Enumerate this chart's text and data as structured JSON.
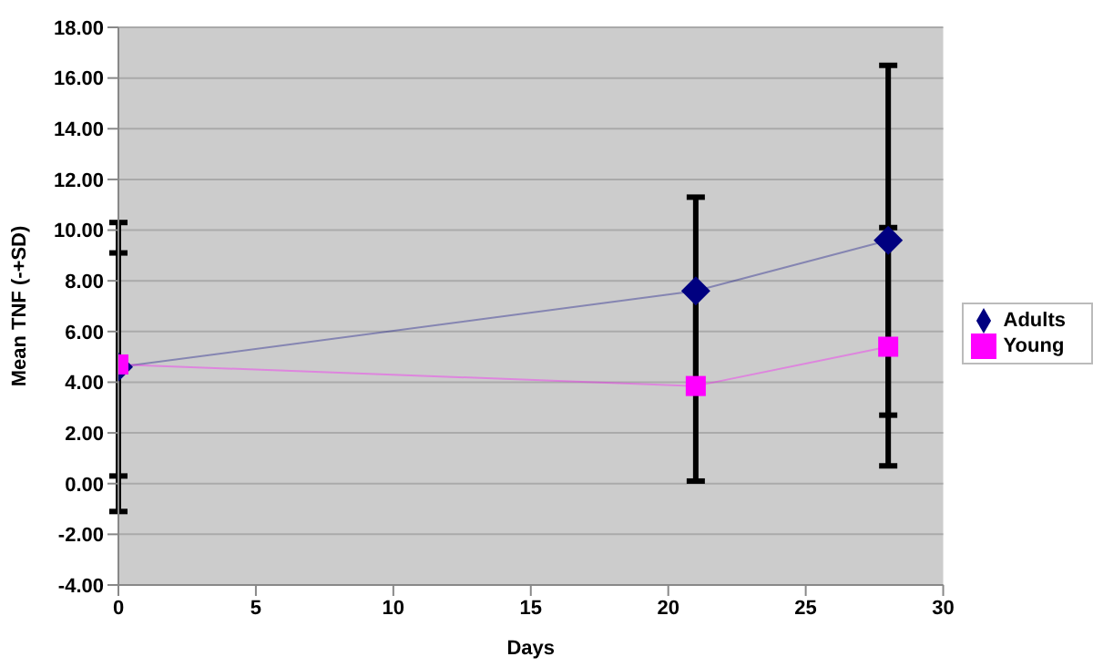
{
  "chart_data": {
    "type": "line",
    "xlabel": "Days",
    "ylabel": "Mean TNF (-+SD)",
    "x": [
      0,
      21,
      28
    ],
    "series": [
      {
        "name": "Adults",
        "color": "#000080",
        "marker": "diamond",
        "values": [
          4.6,
          7.6,
          9.6
        ],
        "errors": [
          5.7,
          3.7,
          6.9
        ]
      },
      {
        "name": "Young",
        "color": "#ff00ff",
        "marker": "square",
        "values": [
          4.7,
          3.85,
          5.4
        ],
        "errors": [
          4.4,
          3.75,
          4.7
        ]
      }
    ],
    "xlim": [
      0,
      30
    ],
    "xticks": [
      0,
      5,
      10,
      15,
      20,
      25,
      30
    ],
    "ylim": [
      -4,
      18
    ],
    "yticks": [
      {
        "value": -4,
        "label": "-4.00"
      },
      {
        "value": -2,
        "label": "-2.00"
      },
      {
        "value": 0,
        "label": "0.00"
      },
      {
        "value": 2,
        "label": "2.00"
      },
      {
        "value": 4,
        "label": "4.00"
      },
      {
        "value": 6,
        "label": "6.00"
      },
      {
        "value": 8,
        "label": "8.00"
      },
      {
        "value": 10,
        "label": "10.00"
      },
      {
        "value": 12,
        "label": "12.00"
      },
      {
        "value": 14,
        "label": "14.00"
      },
      {
        "value": 16,
        "label": "16.00"
      },
      {
        "value": 18,
        "label": "18.00"
      }
    ],
    "grid": "y",
    "legend": "right"
  }
}
